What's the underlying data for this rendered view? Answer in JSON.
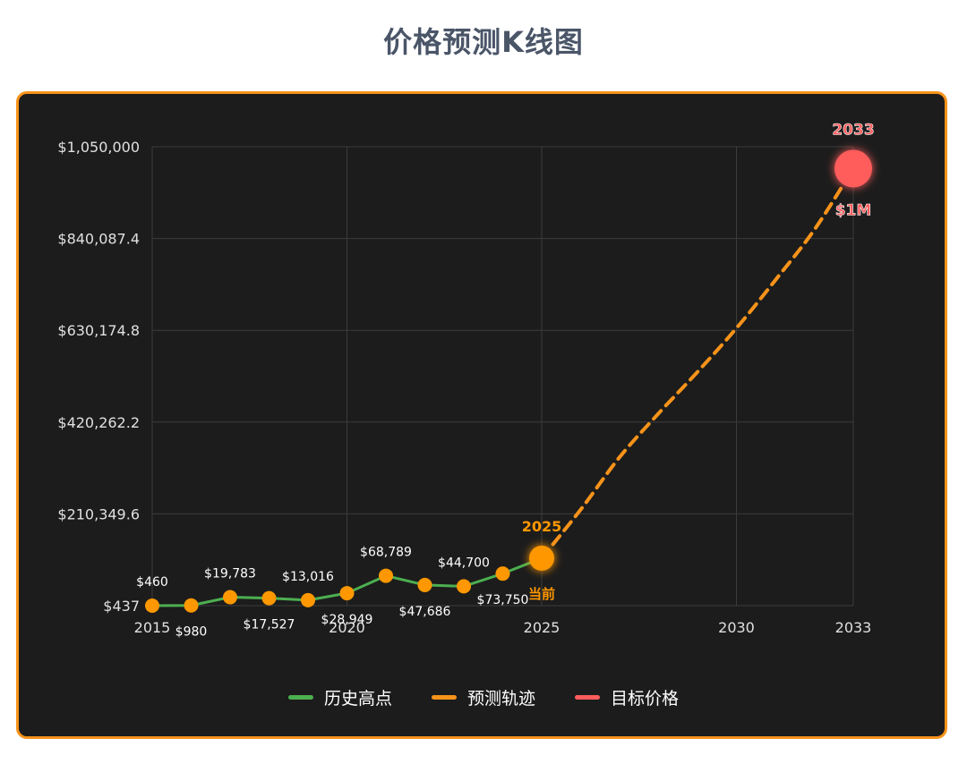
{
  "page": {
    "title": "价格预测K线图"
  },
  "colors": {
    "history": "#4caf50",
    "forecast": "#f7931a",
    "target": "#ff5c5c",
    "point": "#ff9800",
    "grid": "#3c3c3c",
    "text": "#e0e0e0"
  },
  "chart_data": {
    "type": "line",
    "title": "价格预测K线图",
    "xlabel": "",
    "ylabel": "",
    "xlim": [
      2015,
      2033
    ],
    "ylim": [
      437,
      1050000
    ],
    "x_ticks": [
      "2015",
      "2020",
      "2025",
      "2030",
      "2033"
    ],
    "y_ticks": [
      "$437",
      "$210,349.6",
      "$420,262.2",
      "$630,174.8",
      "$840,087.4",
      "$1,050,000"
    ],
    "grid": true,
    "legend_position": "bottom",
    "series": [
      {
        "name": "历史高点",
        "x": [
          2015,
          2016,
          2017,
          2018,
          2019,
          2020,
          2021,
          2022,
          2023,
          2024,
          2025
        ],
        "y": [
          460,
          980,
          19783,
          17527,
          13016,
          28949,
          68789,
          47686,
          44700,
          73750,
          109000
        ],
        "labels": [
          "$460",
          "$980",
          "$19,783",
          "$17,527",
          "$13,016",
          "$28,949",
          "$68,789",
          "$47,686",
          "$44,700",
          "$73,750",
          ""
        ]
      },
      {
        "name": "预测轨迹",
        "x": [
          2025,
          2026,
          2027,
          2028,
          2029,
          2030,
          2031,
          2032,
          2033
        ],
        "y": [
          109000,
          220000,
          340000,
          440000,
          535000,
          635000,
          745000,
          860000,
          1000000
        ]
      },
      {
        "name": "目标价格",
        "x": [
          2033
        ],
        "y": [
          1000000
        ]
      }
    ],
    "annotations": {
      "current": {
        "x": 2025,
        "year_label": "2025",
        "text": "当前"
      },
      "target": {
        "x": 2033,
        "year_label": "2033",
        "text": "$1M"
      }
    }
  }
}
